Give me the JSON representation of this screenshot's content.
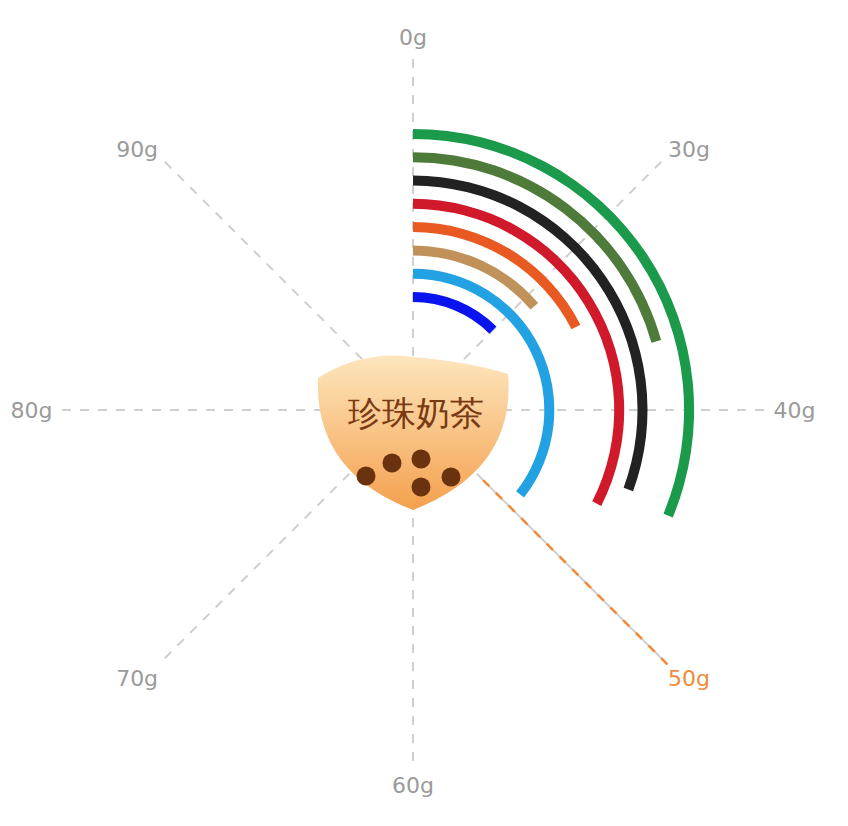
{
  "chart_data": {
    "type": "radial_bar",
    "center_label": "珍珠奶茶",
    "values": [
      30,
      48.5,
      31,
      34,
      46,
      44.5,
      36.5,
      45
    ],
    "colors": [
      "#0a14ee",
      "#22a2e2",
      "#c0925a",
      "#e85a22",
      "#d0192b",
      "#222222",
      "#4e7a3a",
      "#1a9a4a"
    ],
    "xlim": [
      0,
      100
    ],
    "xticks": [
      {
        "value": 0,
        "label": "0g"
      },
      {
        "value": 30,
        "label": "30g"
      },
      {
        "value": 40,
        "label": "40g"
      },
      {
        "value": 50,
        "label": "50g"
      },
      {
        "value": 60,
        "label": "60g"
      },
      {
        "value": 70,
        "label": "70g"
      },
      {
        "value": 80,
        "label": "80g"
      },
      {
        "value": 90,
        "label": "90g"
      }
    ],
    "grid": true,
    "reference": {
      "value": 50,
      "color": "#f08a3a",
      "line_style": "dash"
    }
  }
}
